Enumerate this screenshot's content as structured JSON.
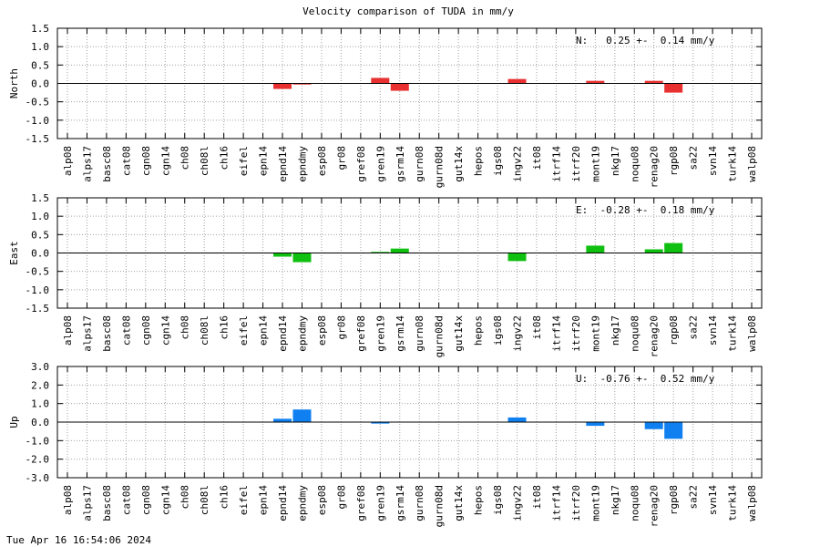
{
  "title": "Velocity comparison of TUDA in mm/y",
  "timestamp": "Tue Apr 16 16:54:06 2024",
  "chart_data": [
    {
      "type": "bar",
      "ylabel": "North",
      "color": "#e83030",
      "ylim": [
        -1.5,
        1.5
      ],
      "yticks": [
        "-1.5",
        "-1.0",
        "-0.5",
        "0.0",
        "0.5",
        "1.0",
        "1.5"
      ],
      "ytick_values": [
        -1.5,
        -1.0,
        -0.5,
        0.0,
        0.5,
        1.0,
        1.5
      ],
      "annotation": "N:   0.25 +-  0.14 mm/y",
      "grid": true,
      "categories": [
        "alp08",
        "alps17",
        "basc08",
        "cat08",
        "cgn08",
        "cgn14",
        "ch08",
        "ch08l",
        "ch16",
        "eifel",
        "epn14",
        "epnd14",
        "epndmy",
        "esp08",
        "gr08",
        "gref08",
        "gren19",
        "gsrm14",
        "gurn08",
        "gurn08d",
        "gut14x",
        "hepos",
        "igs08",
        "ingv22",
        "it08",
        "itrf14",
        "itrf20",
        "mont19",
        "nkg17",
        "noqu08",
        "renag20",
        "rgp08",
        "sa22",
        "svn14",
        "turk14",
        "walp08"
      ],
      "values": [
        0,
        0,
        0,
        0,
        0,
        0,
        0,
        0,
        0,
        0,
        0,
        -0.15,
        -0.03,
        0,
        0,
        0,
        0.15,
        -0.2,
        0,
        0,
        0,
        0,
        0,
        0.12,
        0,
        0,
        0,
        0.07,
        0,
        0,
        0.07,
        -0.25,
        0,
        0,
        0,
        0
      ]
    },
    {
      "type": "bar",
      "ylabel": "East",
      "color": "#10c010",
      "ylim": [
        -1.5,
        1.5
      ],
      "yticks": [
        "-1.5",
        "-1.0",
        "-0.5",
        "0.0",
        "0.5",
        "1.0",
        "1.5"
      ],
      "ytick_values": [
        -1.5,
        -1.0,
        -0.5,
        0.0,
        0.5,
        1.0,
        1.5
      ],
      "annotation": "E:  -0.28 +-  0.18 mm/y",
      "grid": true,
      "categories": [
        "alp08",
        "alps17",
        "basc08",
        "cat08",
        "cgn08",
        "cgn14",
        "ch08",
        "ch08l",
        "ch16",
        "eifel",
        "epn14",
        "epnd14",
        "epndmy",
        "esp08",
        "gr08",
        "gref08",
        "gren19",
        "gsrm14",
        "gurn08",
        "gurn08d",
        "gut14x",
        "hepos",
        "igs08",
        "ingv22",
        "it08",
        "itrf14",
        "itrf20",
        "mont19",
        "nkg17",
        "noqu08",
        "renag20",
        "rgp08",
        "sa22",
        "svn14",
        "turk14",
        "walp08"
      ],
      "values": [
        0,
        0,
        0,
        0,
        0,
        0,
        0,
        0,
        0,
        0,
        0,
        -0.1,
        -0.25,
        0,
        0,
        0,
        0.03,
        0.12,
        0,
        0,
        0,
        0,
        0,
        -0.22,
        0,
        0,
        0,
        0.2,
        0,
        0,
        0.1,
        0.27,
        0,
        0,
        0,
        0
      ]
    },
    {
      "type": "bar",
      "ylabel": "Up",
      "color": "#1080f0",
      "ylim": [
        -3.0,
        3.0
      ],
      "yticks": [
        "-3.0",
        "-2.0",
        "-1.0",
        "0.0",
        "1.0",
        "2.0",
        "3.0"
      ],
      "ytick_values": [
        -3.0,
        -2.0,
        -1.0,
        0.0,
        1.0,
        2.0,
        3.0
      ],
      "annotation": "U:  -0.76 +-  0.52 mm/y",
      "grid": true,
      "categories": [
        "alp08",
        "alps17",
        "basc08",
        "cat08",
        "cgn08",
        "cgn14",
        "ch08",
        "ch08l",
        "ch16",
        "eifel",
        "epn14",
        "epnd14",
        "epndmy",
        "esp08",
        "gr08",
        "gref08",
        "gren19",
        "gsrm14",
        "gurn08",
        "gurn08d",
        "gut14x",
        "hepos",
        "igs08",
        "ingv22",
        "it08",
        "itrf14",
        "itrf20",
        "mont19",
        "nkg17",
        "noqu08",
        "renag20",
        "rgp08",
        "sa22",
        "svn14",
        "turk14",
        "walp08"
      ],
      "values": [
        0,
        0,
        0,
        0,
        0,
        0,
        0,
        0,
        0,
        0,
        0,
        0.18,
        0.68,
        0,
        0,
        0,
        -0.08,
        0,
        0,
        0,
        0,
        0,
        0,
        0.25,
        0,
        0,
        0,
        -0.2,
        0,
        0,
        -0.38,
        -0.9,
        0,
        0,
        0,
        0
      ]
    }
  ]
}
